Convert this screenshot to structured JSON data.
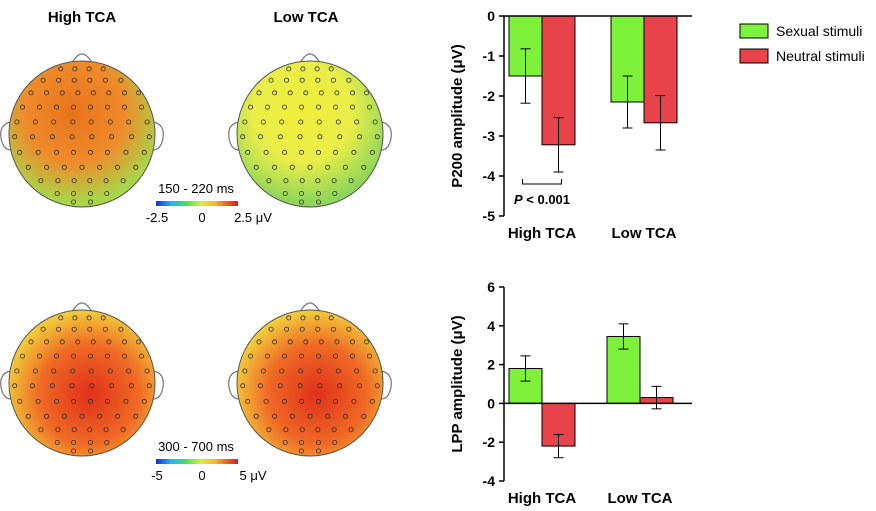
{
  "topomaps": {
    "group_labels": [
      "High TCA",
      "Low TCA"
    ],
    "windows": [
      {
        "time_window": "150 - 220 ms",
        "scale": {
          "min": "-2.5",
          "mid": "0",
          "max": "2.5 μV"
        },
        "maps": [
          {
            "group": "High TCA",
            "center_color": "#e8731c",
            "edge_color": "#a8d64a"
          },
          {
            "group": "Low TCA",
            "center_color": "#f0ee3a",
            "edge_color": "#8fd65a"
          }
        ]
      },
      {
        "time_window": "300 - 700 ms",
        "scale": {
          "min": "-5",
          "mid": "0",
          "max": "5 μV"
        },
        "maps": [
          {
            "group": "High TCA",
            "center_color": "#e0301a",
            "edge_color": "#f2dd3e"
          },
          {
            "group": "Low TCA",
            "center_color": "#e0301a",
            "edge_color": "#f2dd3e"
          }
        ]
      }
    ]
  },
  "legend": {
    "items": [
      {
        "label": "Sexual stimuli",
        "color": "#7ef23b"
      },
      {
        "label": "Neutral stimuli",
        "color": "#e8434a"
      }
    ]
  },
  "chart_data": [
    {
      "type": "bar",
      "ylabel": "P200 amplitude (μV)",
      "categories": [
        "High TCA",
        "Low TCA"
      ],
      "ylim": [
        -5,
        0
      ],
      "yticks": [
        "0",
        "-1",
        "-2",
        "-3",
        "-4",
        "-5"
      ],
      "series": [
        {
          "name": "Sexual stimuli",
          "color": "#7ef23b",
          "values": [
            -1.5,
            -2.15
          ],
          "errors": [
            0.68,
            0.65
          ]
        },
        {
          "name": "Neutral stimuli",
          "color": "#e8434a",
          "values": [
            -3.22,
            -2.67
          ],
          "errors": [
            0.68,
            0.68
          ]
        }
      ],
      "annotation": {
        "text": "P < 0.001",
        "category": "High TCA"
      }
    },
    {
      "type": "bar",
      "ylabel": "LPP amplitude (μV)",
      "categories": [
        "High TCA",
        "Low TCA"
      ],
      "ylim": [
        -4,
        6
      ],
      "yticks": [
        "6",
        "4",
        "2",
        "0",
        "-2",
        "-4"
      ],
      "series": [
        {
          "name": "Sexual stimuli",
          "color": "#7ef23b",
          "values": [
            1.8,
            3.45
          ],
          "errors": [
            0.65,
            0.65
          ]
        },
        {
          "name": "Neutral stimuli",
          "color": "#e8434a",
          "values": [
            -2.2,
            0.3
          ],
          "errors": [
            0.6,
            0.58
          ]
        }
      ]
    }
  ]
}
